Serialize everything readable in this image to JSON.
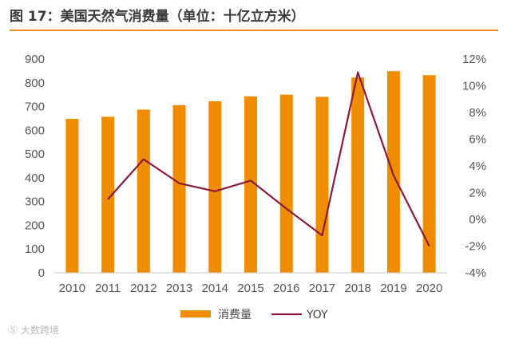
{
  "title": "图 17：美国天然气消费量（单位：十亿立方米）",
  "watermark": "Ⓢ 大数跨境",
  "colors": {
    "bar": "#f08c00",
    "line": "#8b1a3a",
    "accent": "#f08c1e"
  },
  "chart_data": {
    "type": "bar",
    "categories": [
      "2010",
      "2011",
      "2012",
      "2013",
      "2014",
      "2015",
      "2016",
      "2017",
      "2018",
      "2019",
      "2020"
    ],
    "series": [
      {
        "name": "消费量",
        "type": "bar",
        "axis": "left",
        "values": [
          648,
          657,
          687,
          706,
          722,
          743,
          750,
          741,
          822,
          849,
          832
        ]
      },
      {
        "name": "YOY",
        "type": "line",
        "axis": "right",
        "values": [
          null,
          1.5,
          4.5,
          2.7,
          2.1,
          2.9,
          0.8,
          -1.2,
          11.0,
          3.3,
          -2.0
        ]
      }
    ],
    "y_left": {
      "min": 0,
      "max": 900,
      "step": 100,
      "ticks": [
        "0",
        "100",
        "200",
        "300",
        "400",
        "500",
        "600",
        "700",
        "800",
        "900"
      ]
    },
    "y_right": {
      "min": -4,
      "max": 12,
      "step": 2,
      "ticks": [
        "-4%",
        "-2%",
        "0%",
        "2%",
        "4%",
        "6%",
        "8%",
        "10%",
        "12%"
      ]
    },
    "legend": [
      "消费量",
      "YOY"
    ],
    "legend_position": "bottom",
    "grid": false
  }
}
